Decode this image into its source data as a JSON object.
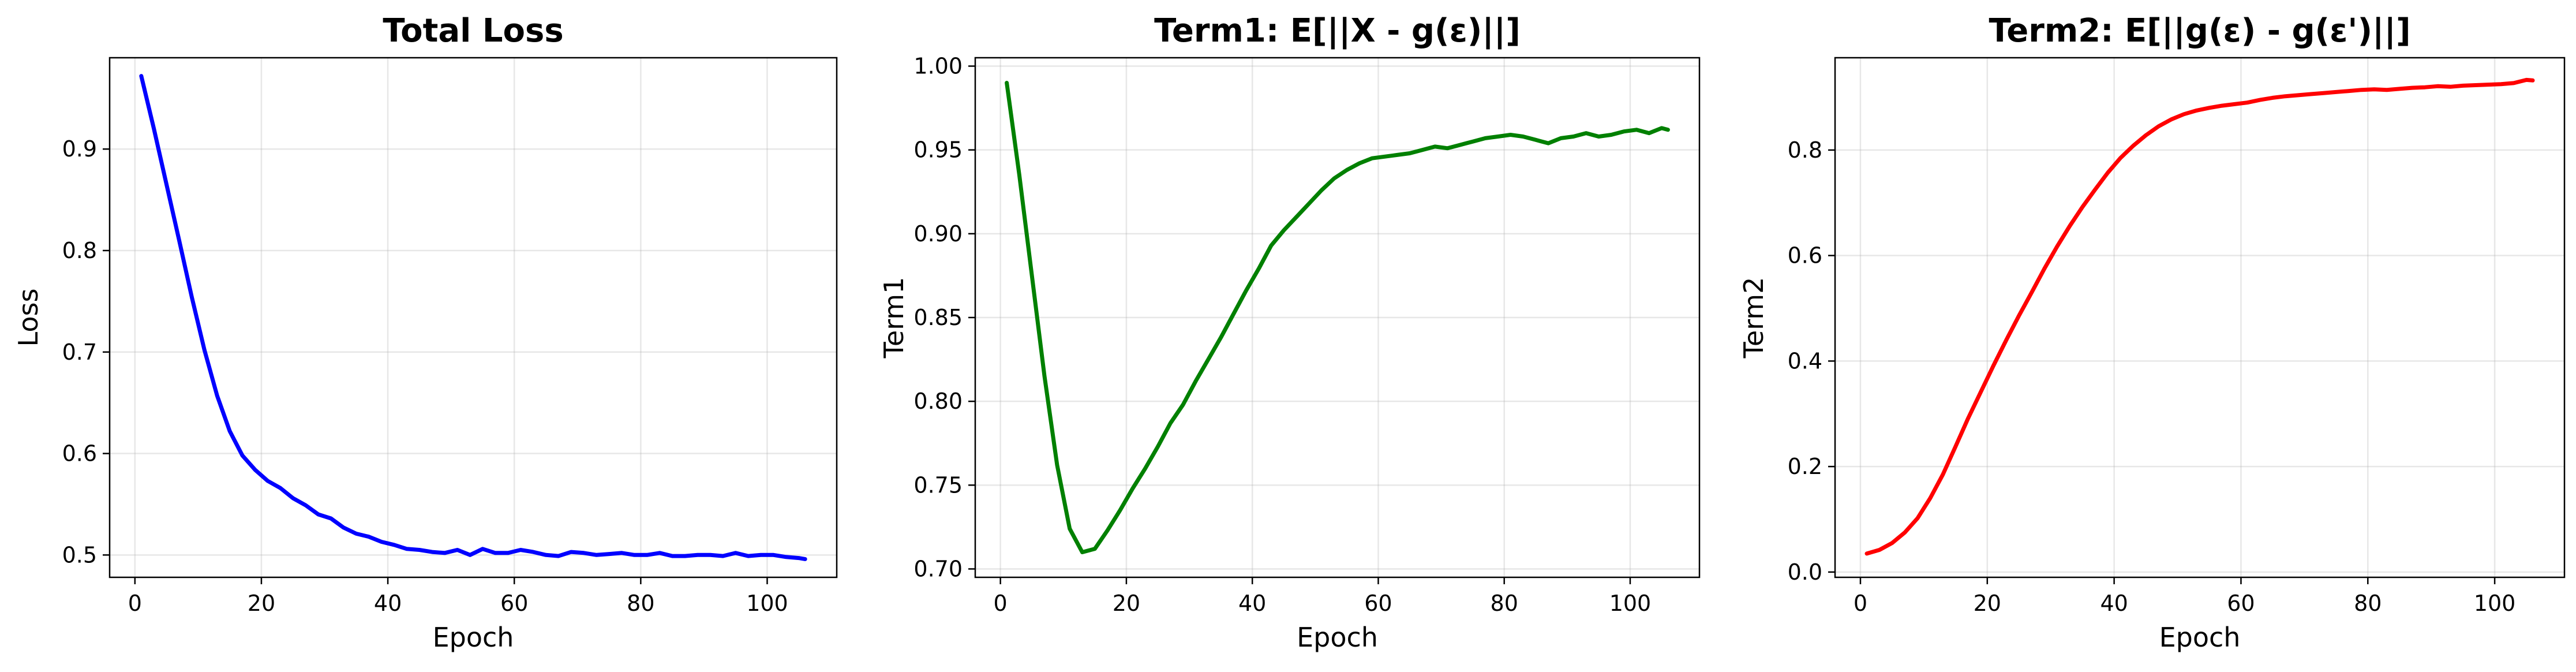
{
  "chart_data": [
    {
      "type": "line",
      "title": "Total Loss",
      "xlabel": "Epoch",
      "ylabel": "Loss",
      "xlim": [
        -4,
        111
      ],
      "ylim": [
        0.478,
        0.99
      ],
      "xticks": [
        0,
        20,
        40,
        60,
        80,
        100
      ],
      "yticks": [
        0.5,
        0.6,
        0.7,
        0.8,
        0.9
      ],
      "ytick_labels": [
        "0.5",
        "0.6",
        "0.7",
        "0.8",
        "0.9"
      ],
      "grid": true,
      "series": [
        {
          "color": "#0000ff",
          "x": [
            1,
            3,
            5,
            7,
            9,
            11,
            13,
            15,
            17,
            19,
            21,
            23,
            25,
            27,
            29,
            31,
            33,
            35,
            37,
            39,
            41,
            43,
            45,
            47,
            49,
            51,
            53,
            55,
            57,
            59,
            61,
            63,
            65,
            67,
            69,
            71,
            73,
            75,
            77,
            79,
            81,
            83,
            85,
            87,
            89,
            91,
            93,
            95,
            97,
            99,
            101,
            103,
            105,
            106
          ],
          "y": [
            0.972,
            0.92,
            0.865,
            0.81,
            0.754,
            0.702,
            0.657,
            0.622,
            0.598,
            0.584,
            0.573,
            0.566,
            0.556,
            0.549,
            0.54,
            0.536,
            0.527,
            0.521,
            0.518,
            0.513,
            0.51,
            0.506,
            0.505,
            0.503,
            0.502,
            0.505,
            0.5,
            0.506,
            0.502,
            0.502,
            0.505,
            0.503,
            0.5,
            0.499,
            0.503,
            0.502,
            0.5,
            0.501,
            0.502,
            0.5,
            0.5,
            0.502,
            0.499,
            0.499,
            0.5,
            0.5,
            0.499,
            0.502,
            0.499,
            0.5,
            0.5,
            0.498,
            0.497,
            0.496
          ]
        }
      ]
    },
    {
      "type": "line",
      "title": "Term1: E[||X - g(ε)||]",
      "xlabel": "Epoch",
      "ylabel": "Term1",
      "xlim": [
        -4,
        111
      ],
      "ylim": [
        0.695,
        1.005
      ],
      "xticks": [
        0,
        20,
        40,
        60,
        80,
        100
      ],
      "yticks": [
        0.7,
        0.75,
        0.8,
        0.85,
        0.9,
        0.95,
        1.0
      ],
      "ytick_labels": [
        "0.70",
        "0.75",
        "0.80",
        "0.85",
        "0.90",
        "0.95",
        "1.00"
      ],
      "grid": true,
      "series": [
        {
          "color": "#008000",
          "x": [
            1,
            3,
            5,
            7,
            9,
            11,
            13,
            15,
            17,
            19,
            21,
            23,
            25,
            27,
            29,
            31,
            33,
            35,
            37,
            39,
            41,
            43,
            45,
            47,
            49,
            51,
            53,
            55,
            57,
            59,
            61,
            63,
            65,
            67,
            69,
            71,
            73,
            75,
            77,
            79,
            81,
            83,
            85,
            87,
            89,
            91,
            93,
            95,
            97,
            99,
            101,
            103,
            105,
            106
          ],
          "y": [
            0.99,
            0.935,
            0.875,
            0.815,
            0.762,
            0.724,
            0.71,
            0.712,
            0.723,
            0.735,
            0.748,
            0.76,
            0.773,
            0.787,
            0.798,
            0.812,
            0.825,
            0.838,
            0.852,
            0.866,
            0.879,
            0.893,
            0.902,
            0.91,
            0.918,
            0.926,
            0.933,
            0.938,
            0.942,
            0.945,
            0.946,
            0.947,
            0.948,
            0.95,
            0.952,
            0.951,
            0.953,
            0.955,
            0.957,
            0.958,
            0.959,
            0.958,
            0.956,
            0.954,
            0.957,
            0.958,
            0.96,
            0.958,
            0.959,
            0.961,
            0.962,
            0.96,
            0.963,
            0.962
          ]
        }
      ]
    },
    {
      "type": "line",
      "title": "Term2: E[||g(ε) - g(ε')||]",
      "xlabel": "Epoch",
      "ylabel": "Term2",
      "xlim": [
        -4,
        111
      ],
      "ylim": [
        -0.01,
        0.975
      ],
      "xticks": [
        0,
        20,
        40,
        60,
        80,
        100
      ],
      "yticks": [
        0.0,
        0.2,
        0.4,
        0.6,
        0.8
      ],
      "ytick_labels": [
        "0.0",
        "0.2",
        "0.4",
        "0.6",
        "0.8"
      ],
      "grid": true,
      "series": [
        {
          "color": "#ff0000",
          "x": [
            1,
            3,
            5,
            7,
            9,
            11,
            13,
            15,
            17,
            19,
            21,
            23,
            25,
            27,
            29,
            31,
            33,
            35,
            37,
            39,
            41,
            43,
            45,
            47,
            49,
            51,
            53,
            55,
            57,
            59,
            61,
            63,
            65,
            67,
            69,
            71,
            73,
            75,
            77,
            79,
            81,
            83,
            85,
            87,
            89,
            91,
            93,
            95,
            97,
            99,
            101,
            103,
            105,
            106
          ],
          "y": [
            0.035,
            0.042,
            0.055,
            0.075,
            0.102,
            0.14,
            0.185,
            0.238,
            0.292,
            0.342,
            0.392,
            0.44,
            0.486,
            0.53,
            0.575,
            0.617,
            0.656,
            0.692,
            0.725,
            0.757,
            0.785,
            0.808,
            0.828,
            0.845,
            0.858,
            0.868,
            0.875,
            0.88,
            0.884,
            0.887,
            0.89,
            0.895,
            0.899,
            0.902,
            0.904,
            0.906,
            0.908,
            0.91,
            0.912,
            0.914,
            0.915,
            0.914,
            0.916,
            0.918,
            0.919,
            0.921,
            0.92,
            0.922,
            0.923,
            0.924,
            0.925,
            0.927,
            0.933,
            0.932
          ]
        }
      ]
    }
  ]
}
